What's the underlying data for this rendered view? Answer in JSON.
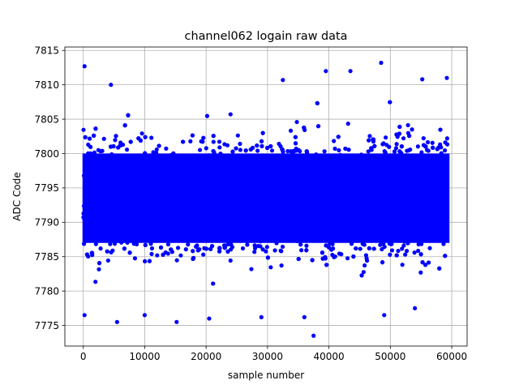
{
  "chart_data": {
    "type": "scatter",
    "title": "channel062 logain raw data",
    "xlabel": "sample number",
    "ylabel": "ADC Code",
    "xlim": [
      -3000,
      62500
    ],
    "ylim": [
      7772,
      7815.5
    ],
    "xticks": [
      0,
      10000,
      20000,
      30000,
      40000,
      50000,
      60000
    ],
    "xtick_labels": [
      "0",
      "10000",
      "20000",
      "30000",
      "40000",
      "50000",
      "60000"
    ],
    "yticks": [
      7775,
      7780,
      7785,
      7790,
      7795,
      7800,
      7805,
      7810,
      7815
    ],
    "ytick_labels": [
      "7775",
      "7780",
      "7785",
      "7790",
      "7795",
      "7800",
      "7805",
      "7810",
      "7815"
    ],
    "grid": true,
    "marker_color": "#0000ff",
    "series": [
      {
        "n_samples": 59500,
        "x_range": [
          0,
          59500
        ],
        "dense_band": [
          7784,
          7803
        ],
        "core_band": [
          7787,
          7800
        ],
        "outliers": [
          {
            "x": 200,
            "y": 7812.7
          },
          {
            "x": 4500,
            "y": 7810
          },
          {
            "x": 32500,
            "y": 7810.7
          },
          {
            "x": 39500,
            "y": 7812
          },
          {
            "x": 43500,
            "y": 7812
          },
          {
            "x": 48500,
            "y": 7813.2
          },
          {
            "x": 55200,
            "y": 7810.8
          },
          {
            "x": 59200,
            "y": 7811
          },
          {
            "x": 37500,
            "y": 7773.5
          },
          {
            "x": 5500,
            "y": 7775.5
          },
          {
            "x": 15200,
            "y": 7775.5
          },
          {
            "x": 200,
            "y": 7776.5
          },
          {
            "x": 29000,
            "y": 7776.2
          },
          {
            "x": 49000,
            "y": 7776.5
          },
          {
            "x": 36000,
            "y": 7776.2
          },
          {
            "x": 10000,
            "y": 7776.5
          },
          {
            "x": 54000,
            "y": 7777.5
          },
          {
            "x": 20500,
            "y": 7776
          }
        ]
      }
    ]
  }
}
